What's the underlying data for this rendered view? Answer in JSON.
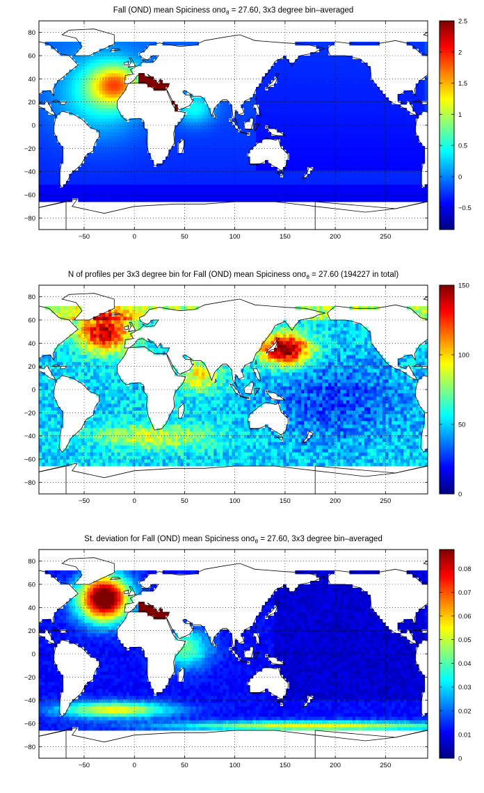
{
  "chart_data": [
    {
      "type": "heatmap",
      "title_prefix": "Fall (OND) mean Spiciness on",
      "title_symbol": "σ",
      "title_subscript": "θ",
      "title_suffix": " = 27.60, 3x3 degree bin–averaged",
      "x_ticks": [
        "−50",
        "0",
        "50",
        "100",
        "150",
        "200",
        "250"
      ],
      "y_ticks": [
        "80",
        "60",
        "40",
        "20",
        "0",
        "−20",
        "−40",
        "−60",
        "−80"
      ],
      "xlim": [
        -95,
        292
      ],
      "ylim": [
        -90,
        90
      ],
      "colorbar_ticks": [
        "2.5",
        "2",
        "1.5",
        "1",
        "0.5",
        "0",
        "−0.5"
      ],
      "colorbar_range": [
        -0.85,
        2.5
      ],
      "grid": true,
      "colormap": "jet"
    },
    {
      "type": "heatmap",
      "title_prefix": "N of profiles per 3x3 degree bin for Fall (OND) mean Spiciness on",
      "title_symbol": "σ",
      "title_subscript": "θ",
      "title_suffix": " = 27.60 (194227 in total)",
      "x_ticks": [
        "−50",
        "0",
        "50",
        "100",
        "150",
        "200",
        "250"
      ],
      "y_ticks": [
        "80",
        "60",
        "40",
        "20",
        "0",
        "−20",
        "−40",
        "−60",
        "−80"
      ],
      "xlim": [
        -95,
        292
      ],
      "ylim": [
        -90,
        90
      ],
      "colorbar_ticks": [
        "150",
        "100",
        "50",
        "0"
      ],
      "colorbar_range": [
        0,
        150
      ],
      "grid": true,
      "colormap": "jet"
    },
    {
      "type": "heatmap",
      "title_prefix": "St. deviation for Fall (OND) mean Spiciness on",
      "title_symbol": "σ",
      "title_subscript": "θ",
      "title_suffix": " = 27.60, 3x3 degree bin–averaged",
      "x_ticks": [
        "−50",
        "0",
        "50",
        "100",
        "150",
        "200",
        "250"
      ],
      "y_ticks": [
        "80",
        "60",
        "40",
        "20",
        "0",
        "−20",
        "−40",
        "−60",
        "−80"
      ],
      "xlim": [
        -95,
        292
      ],
      "ylim": [
        -90,
        90
      ],
      "colorbar_ticks": [
        "0.08",
        "0.07",
        "0.06",
        "0.05",
        "0.04",
        "0.03",
        "0.02",
        "0.01",
        "0"
      ],
      "colorbar_range": [
        0,
        0.088
      ],
      "grid": true,
      "colormap": "jet"
    }
  ]
}
